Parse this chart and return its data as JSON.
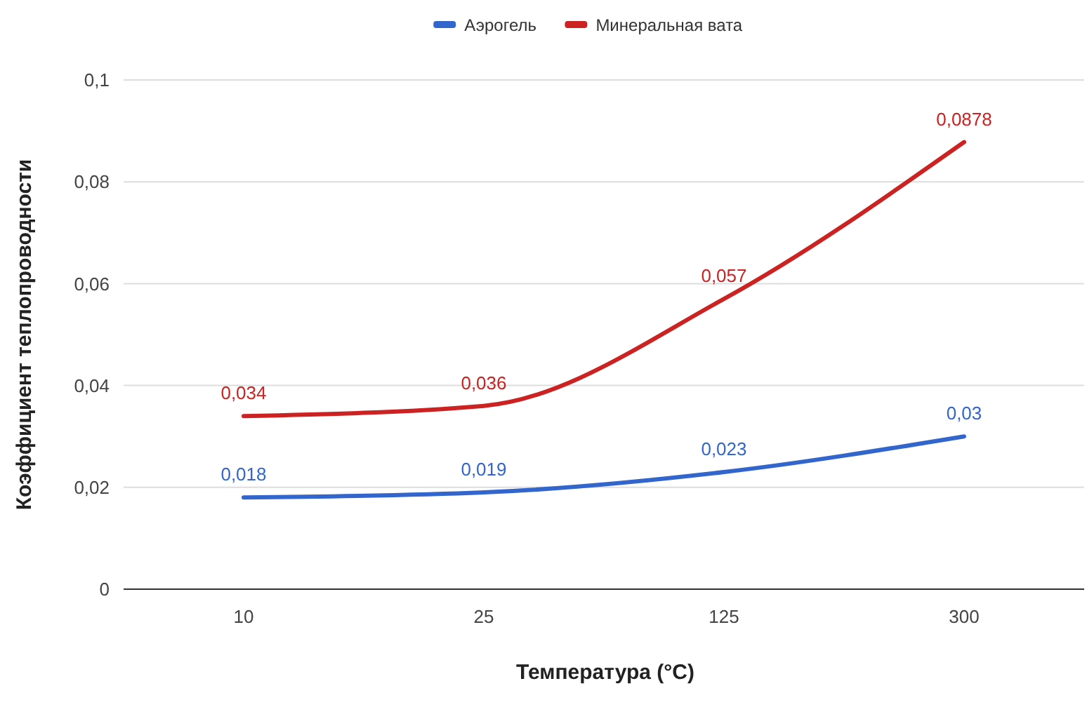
{
  "chart_data": {
    "type": "line",
    "xlabel": "Температура (°C)",
    "ylabel": "Коэффициент теплопроводности",
    "categories": [
      "10",
      "25",
      "125",
      "300"
    ],
    "series": [
      {
        "name": "Аэрогель",
        "color": "#3366cc",
        "values": [
          0.018,
          0.019,
          0.023,
          0.03
        ],
        "value_labels": [
          "0,018",
          "0,019",
          "0,023",
          "0,03"
        ]
      },
      {
        "name": "Минеральная вата",
        "color": "#cc2222",
        "values": [
          0.034,
          0.036,
          0.057,
          0.0878
        ],
        "value_labels": [
          "0,034",
          "0,036",
          "0,057",
          "0,0878"
        ]
      }
    ],
    "ylim": [
      0,
      0.1
    ],
    "yticks": [
      {
        "value": 0,
        "label": "0"
      },
      {
        "value": 0.02,
        "label": "0,02"
      },
      {
        "value": 0.04,
        "label": "0,04"
      },
      {
        "value": 0.06,
        "label": "0,06"
      },
      {
        "value": 0.08,
        "label": "0,08"
      },
      {
        "value": 0.1,
        "label": "0,1"
      }
    ],
    "grid": "y",
    "legend": "top",
    "marker": "none",
    "line_style": "solid"
  }
}
